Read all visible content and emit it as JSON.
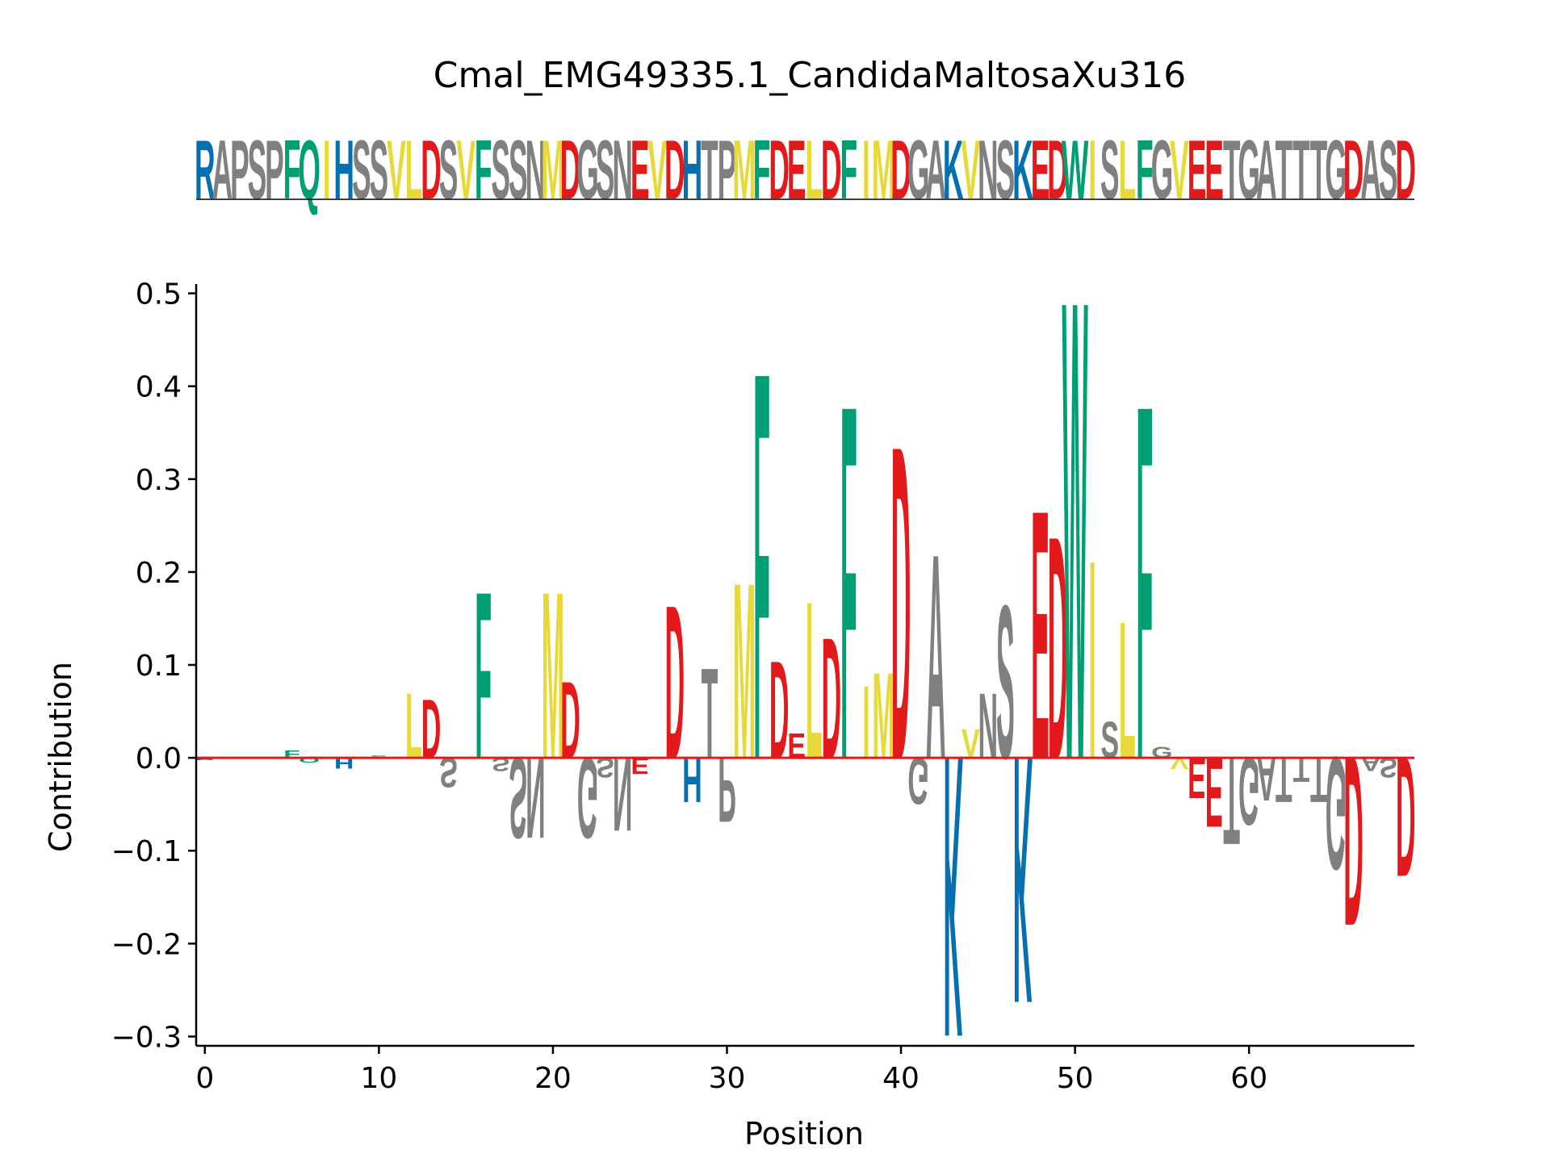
{
  "chart_data": {
    "type": "sequence-logo",
    "title": "Cmal_EMG49335.1_CandidaMaltosaXu316",
    "xlabel": "Position",
    "ylabel": "Contribution",
    "xlim": [
      -0.5,
      69.5
    ],
    "ylim": [
      -0.31,
      0.51
    ],
    "xticks": [
      0,
      10,
      20,
      30,
      40,
      50,
      60
    ],
    "yticks": [
      -0.3,
      -0.2,
      -0.1,
      0.0,
      0.1,
      0.2,
      0.3,
      0.4,
      0.5
    ],
    "ytick_labels": [
      "−0.3",
      "−0.2",
      "−0.1",
      "0.0",
      "0.1",
      "0.2",
      "0.3",
      "0.4",
      "0.5"
    ],
    "sequence": "RAPSPFQIHSSVLDSVFSSNMDGSNEVDHTPMFDELDFIMDGAKVNSKEDWISLFGVEETGATTTGDASD",
    "baseline": 0.0,
    "colors": {
      "acidic": "#e31a1c",
      "basic": "#0570b0",
      "polar": "#009e73",
      "hydrophobic": "#e8d93a",
      "other": "#808080",
      "baseline": "#e31a1c"
    },
    "residue_colors": {
      "D": "#e31a1c",
      "E": "#e31a1c",
      "K": "#0570b0",
      "R": "#0570b0",
      "H": "#0570b0",
      "F": "#009e73",
      "Q": "#009e73",
      "W": "#009e73",
      "I": "#e8d93a",
      "L": "#e8d93a",
      "V": "#e8d93a",
      "M": "#e8d93a",
      "A": "#808080",
      "P": "#808080",
      "S": "#808080",
      "G": "#808080",
      "N": "#808080",
      "T": "#808080"
    },
    "contributions": [
      {
        "pos": 0,
        "letter": "R",
        "value": -0.003
      },
      {
        "pos": 5,
        "letter": "F",
        "value": 0.008
      },
      {
        "pos": 6,
        "letter": "Q",
        "value": -0.005
      },
      {
        "pos": 8,
        "letter": "H",
        "value": -0.012
      },
      {
        "pos": 10,
        "letter": "S",
        "value": 0.003
      },
      {
        "pos": 12,
        "letter": "L",
        "value": 0.072
      },
      {
        "pos": 13,
        "letter": "D",
        "value": 0.065
      },
      {
        "pos": 14,
        "letter": "S",
        "value": -0.033
      },
      {
        "pos": 16,
        "letter": "F",
        "value": 0.185
      },
      {
        "pos": 17,
        "letter": "S",
        "value": -0.015
      },
      {
        "pos": 18,
        "letter": "S",
        "value": -0.09
      },
      {
        "pos": 19,
        "letter": "N",
        "value": -0.09
      },
      {
        "pos": 20,
        "letter": "M",
        "value": 0.185
      },
      {
        "pos": 21,
        "letter": "D",
        "value": 0.085
      },
      {
        "pos": 22,
        "letter": "G",
        "value": -0.09
      },
      {
        "pos": 23,
        "letter": "S",
        "value": -0.022
      },
      {
        "pos": 24,
        "letter": "N",
        "value": -0.082
      },
      {
        "pos": 25,
        "letter": "E",
        "value": -0.018
      },
      {
        "pos": 27,
        "letter": "D",
        "value": 0.17
      },
      {
        "pos": 28,
        "letter": "H",
        "value": -0.05
      },
      {
        "pos": 29,
        "letter": "T",
        "value": 0.1
      },
      {
        "pos": 30,
        "letter": "P",
        "value": -0.072
      },
      {
        "pos": 31,
        "letter": "M",
        "value": 0.195
      },
      {
        "pos": 32,
        "letter": "F",
        "value": 0.43
      },
      {
        "pos": 33,
        "letter": "D",
        "value": 0.108
      },
      {
        "pos": 34,
        "letter": "E",
        "value": 0.027
      },
      {
        "pos": 35,
        "letter": "L",
        "value": 0.174
      },
      {
        "pos": 36,
        "letter": "D",
        "value": 0.134
      },
      {
        "pos": 37,
        "letter": "F",
        "value": 0.393
      },
      {
        "pos": 38,
        "letter": "I",
        "value": 0.08
      },
      {
        "pos": 39,
        "letter": "M",
        "value": 0.095
      },
      {
        "pos": 40,
        "letter": "D",
        "value": 0.348
      },
      {
        "pos": 41,
        "letter": "G",
        "value": -0.052
      },
      {
        "pos": 42,
        "letter": "A",
        "value": 0.227
      },
      {
        "pos": 43,
        "letter": "K",
        "value": -0.313
      },
      {
        "pos": 44,
        "letter": "V",
        "value": 0.032
      },
      {
        "pos": 45,
        "letter": "N",
        "value": 0.072
      },
      {
        "pos": 46,
        "letter": "S",
        "value": 0.17
      },
      {
        "pos": 47,
        "letter": "K",
        "value": -0.275
      },
      {
        "pos": 48,
        "letter": "E",
        "value": 0.276
      },
      {
        "pos": 49,
        "letter": "D",
        "value": 0.247
      },
      {
        "pos": 50,
        "letter": "W",
        "value": 0.51
      },
      {
        "pos": 51,
        "letter": "I",
        "value": 0.22
      },
      {
        "pos": 52,
        "letter": "S",
        "value": 0.04
      },
      {
        "pos": 53,
        "letter": "L",
        "value": 0.152
      },
      {
        "pos": 54,
        "letter": "F",
        "value": 0.393
      },
      {
        "pos": 55,
        "letter": "G",
        "value": 0.012
      },
      {
        "pos": 56,
        "letter": "V",
        "value": -0.013
      },
      {
        "pos": 57,
        "letter": "E",
        "value": -0.045
      },
      {
        "pos": 58,
        "letter": "E",
        "value": -0.078
      },
      {
        "pos": 59,
        "letter": "T",
        "value": -0.097
      },
      {
        "pos": 60,
        "letter": "G",
        "value": -0.075
      },
      {
        "pos": 61,
        "letter": "A",
        "value": -0.048
      },
      {
        "pos": 62,
        "letter": "T",
        "value": -0.05
      },
      {
        "pos": 63,
        "letter": "T",
        "value": -0.027
      },
      {
        "pos": 64,
        "letter": "T",
        "value": -0.05
      },
      {
        "pos": 65,
        "letter": "G",
        "value": -0.125
      },
      {
        "pos": 66,
        "letter": "D",
        "value": -0.188
      },
      {
        "pos": 67,
        "letter": "A",
        "value": -0.015
      },
      {
        "pos": 68,
        "letter": "S",
        "value": -0.022
      },
      {
        "pos": 69,
        "letter": "D",
        "value": -0.133
      }
    ]
  }
}
